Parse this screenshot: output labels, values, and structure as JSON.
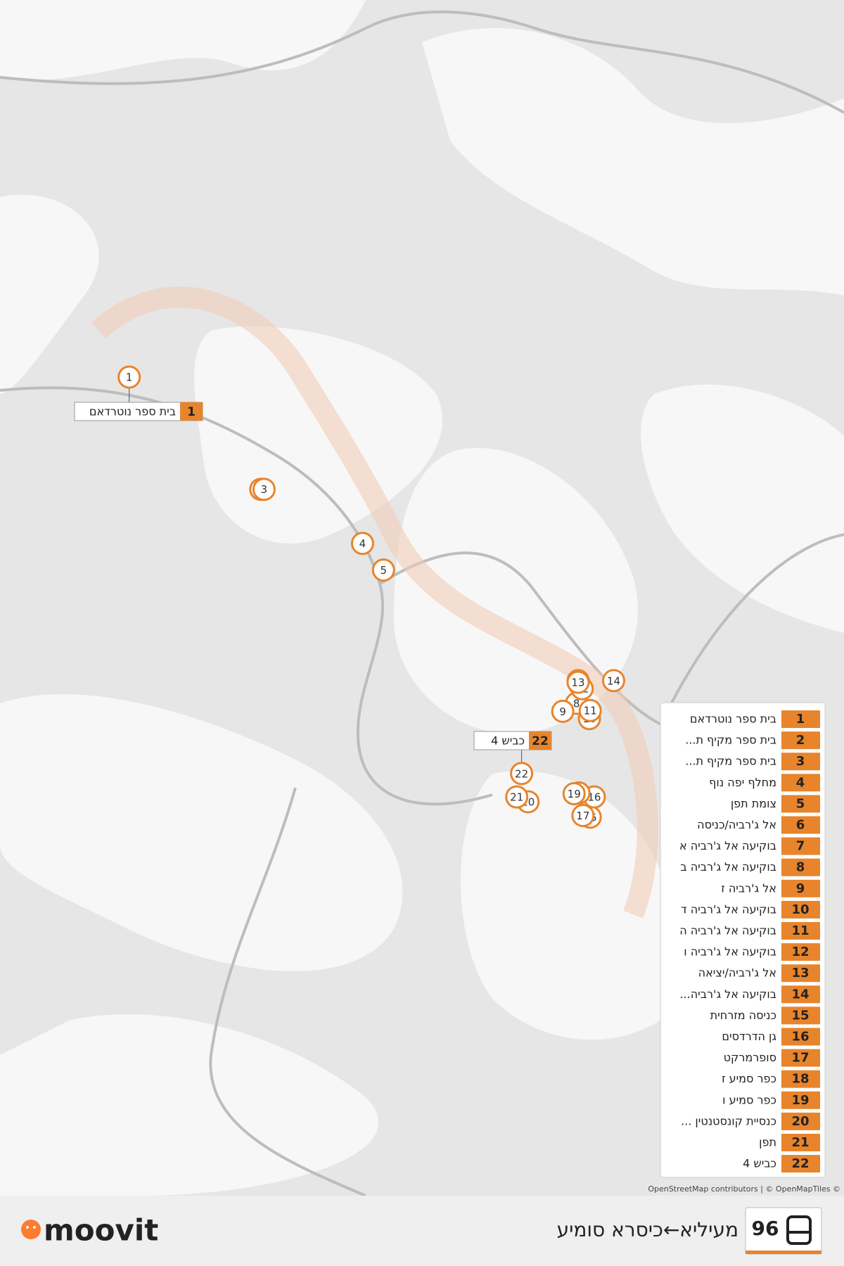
{
  "route": {
    "number": "96",
    "title": "מעיליא←כיסרא סומיע"
  },
  "logo": "moovit",
  "attribution": "OpenStreetMap contributors | © OpenMapTiles ©",
  "stops": [
    {
      "number": 1,
      "name": "בית ספר נוטרדאם"
    },
    {
      "number": 2,
      "name": "בית ספר מקיף ת..."
    },
    {
      "number": 3,
      "name": "בית ספר מקיף ת..."
    },
    {
      "number": 4,
      "name": "מחלף יפה נוף"
    },
    {
      "number": 5,
      "name": "צומת תפן"
    },
    {
      "number": 6,
      "name": "אל ג'רביה/כניסה"
    },
    {
      "number": 7,
      "name": "בוקיעה אל ג'רביה א"
    },
    {
      "number": 8,
      "name": "בוקיעה אל ג'רביה ב"
    },
    {
      "number": 9,
      "name": "אל ג'רביה ז"
    },
    {
      "number": 10,
      "name": "בוקיעה אל ג'רביה ד"
    },
    {
      "number": 11,
      "name": "בוקיעה אל ג'רביה ה"
    },
    {
      "number": 12,
      "name": "בוקיעה אל ג'רביה ו"
    },
    {
      "number": 13,
      "name": "אל ג'רביה/יציאה"
    },
    {
      "number": 14,
      "name": "בוקיעה אל ג'רביה..."
    },
    {
      "number": 15,
      "name": "כניסה מזרחית"
    },
    {
      "number": 16,
      "name": "גן הדרדסים"
    },
    {
      "number": 17,
      "name": "סופרמרקט"
    },
    {
      "number": 18,
      "name": "כפר סמיע ז"
    },
    {
      "number": 19,
      "name": "כפר סמיע ו"
    },
    {
      "number": 20,
      "name": "כנסיית קונסטנטין ..."
    },
    {
      "number": 21,
      "name": "תפן"
    },
    {
      "number": 22,
      "name": "כביש 4"
    }
  ]
}
